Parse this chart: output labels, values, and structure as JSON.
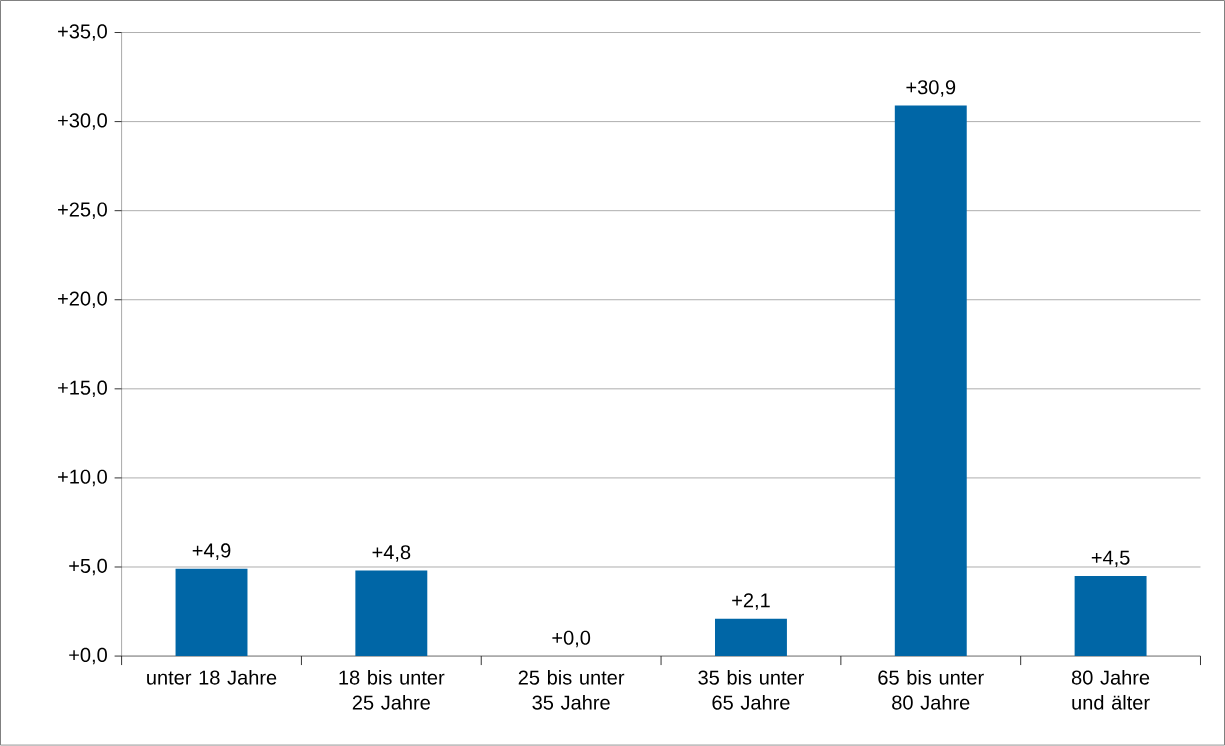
{
  "chart_data": {
    "type": "bar",
    "categories": [
      "unter 18 Jahre",
      "18 bis unter 25 Jahre",
      "25 bis unter 35 Jahre",
      "35 bis unter 65 Jahre",
      "65 bis unter 80 Jahre",
      "80 Jahre und älter"
    ],
    "values": [
      4.9,
      4.8,
      0.0,
      2.1,
      30.9,
      4.5
    ],
    "value_labels": [
      "+4,9",
      "+4,8",
      "+0,0",
      "+2,1",
      "+30,9",
      "+4,5"
    ],
    "color": "#0066a6",
    "ylim": [
      0,
      35
    ],
    "yticks": [
      {
        "value": 0,
        "label": "+0,0"
      },
      {
        "value": 5,
        "label": "+5,0"
      },
      {
        "value": 10,
        "label": "+10,0"
      },
      {
        "value": 15,
        "label": "+15,0"
      },
      {
        "value": 20,
        "label": "+20,0"
      },
      {
        "value": 25,
        "label": "+25,0"
      },
      {
        "value": 30,
        "label": "+30,0"
      },
      {
        "value": 35,
        "label": "+35,0"
      }
    ],
    "grid": "y"
  }
}
